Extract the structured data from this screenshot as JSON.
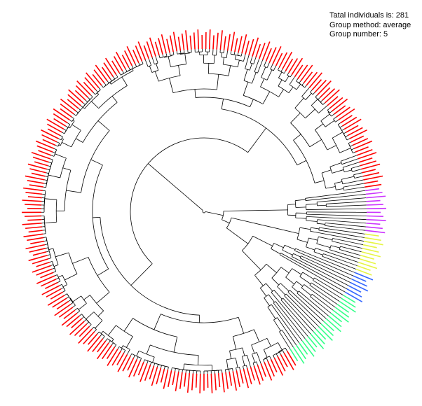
{
  "summary": {
    "total_line": "Tatal individuals is: 281",
    "method_line": "Group method: average",
    "group_line": "Group number: 5"
  },
  "tree": {
    "layout": "circular dendrogram",
    "total_leaves": 281,
    "branch_color": "#000000",
    "groups": [
      {
        "id": 1,
        "color": "#ff0000",
        "leaf_count": 229
      },
      {
        "id": 2,
        "color": "#cc33ff",
        "leaf_count": 12
      },
      {
        "id": 3,
        "color": "#e6f542",
        "leaf_count": 11
      },
      {
        "id": 4,
        "color": "#3366ff",
        "leaf_count": 7
      },
      {
        "id": 5,
        "color": "#33ff88",
        "leaf_count": 22
      }
    ]
  }
}
